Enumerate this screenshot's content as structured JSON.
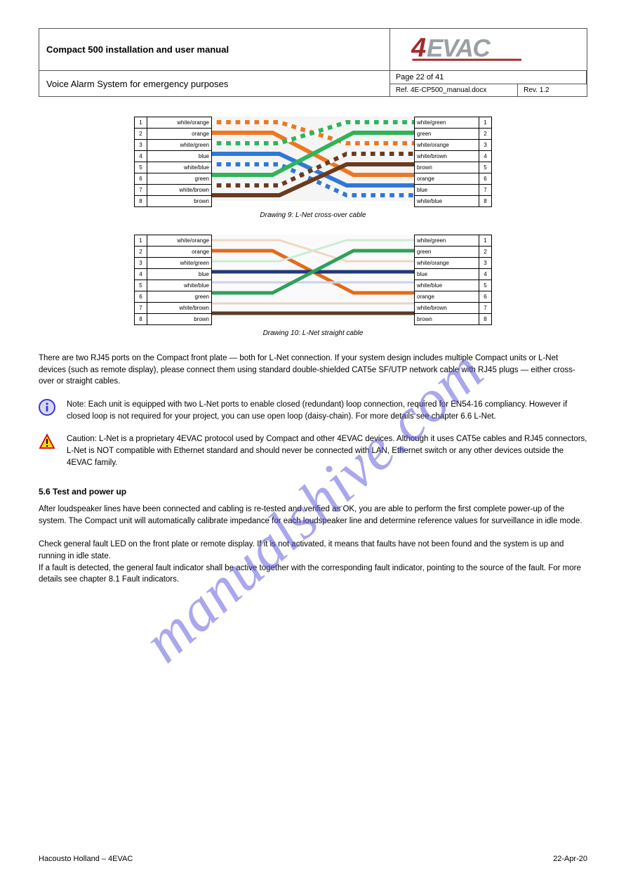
{
  "header": {
    "title": "Compact 500 installation and user manual",
    "subtitle": "Voice Alarm System for emergency purposes",
    "page_label": "Page 22 of 41",
    "ref_label": "Ref.",
    "ref_value": "4E-CP500_manual.docx",
    "rev_label": "Rev.",
    "rev_value": "1.2"
  },
  "logo": {
    "text": "4EVAC",
    "four_color": "#a32b2b",
    "evac_color": "#9aa0a4"
  },
  "diagram1": {
    "caption": "Drawing 9: L-Net cross-over cable",
    "left": [
      {
        "num": "1",
        "label": "white/orange"
      },
      {
        "num": "2",
        "label": "orange"
      },
      {
        "num": "3",
        "label": "white/green"
      },
      {
        "num": "4",
        "label": "blue"
      },
      {
        "num": "5",
        "label": "white/blue"
      },
      {
        "num": "6",
        "label": "green"
      },
      {
        "num": "7",
        "label": "white/brown"
      },
      {
        "num": "8",
        "label": "brown"
      }
    ],
    "right": [
      {
        "label": "white/green",
        "num": "1"
      },
      {
        "label": "green",
        "num": "2"
      },
      {
        "label": "white/orange",
        "num": "3"
      },
      {
        "label": "white/brown",
        "num": "4"
      },
      {
        "label": "brown",
        "num": "5"
      },
      {
        "label": "orange",
        "num": "6"
      },
      {
        "label": "blue",
        "num": "7"
      },
      {
        "label": "white/blue",
        "num": "8"
      }
    ],
    "wires": {
      "bg": "#ffffff",
      "stroke_width": 6,
      "dash_width": 6,
      "colors": {
        "orange": "#ee7722",
        "green": "#2fb45a",
        "blue": "#2f78d8",
        "brown": "#6b3b1f",
        "white": "#ffffff"
      }
    }
  },
  "diagram2": {
    "caption": "Drawing 10: L-Net straight cable",
    "left": [
      {
        "num": "1",
        "label": "white/orange"
      },
      {
        "num": "2",
        "label": "orange"
      },
      {
        "num": "3",
        "label": "white/green"
      },
      {
        "num": "4",
        "label": "blue"
      },
      {
        "num": "5",
        "label": "white/blue"
      },
      {
        "num": "6",
        "label": "green"
      },
      {
        "num": "7",
        "label": "white/brown"
      },
      {
        "num": "8",
        "label": "brown"
      }
    ],
    "right": [
      {
        "label": "white/green",
        "num": "1"
      },
      {
        "label": "green",
        "num": "2"
      },
      {
        "label": "white/orange",
        "num": "3"
      },
      {
        "label": "blue",
        "num": "4"
      },
      {
        "label": "white/blue",
        "num": "5"
      },
      {
        "label": "orange",
        "num": "6"
      },
      {
        "label": "white/brown",
        "num": "7"
      },
      {
        "label": "brown",
        "num": "8"
      }
    ],
    "wires": {
      "stroke_width": 5,
      "colors": {
        "orange": "#e36a1a",
        "green": "#2ea05a",
        "blue": "#223a7a",
        "brown": "#5a3a24",
        "light": "#f0d6c2"
      }
    }
  },
  "text": {
    "para_after": "There are two RJ45 ports on the Compact front plate — both for L-Net connection. If your system design includes multiple Compact units or L-Net devices (such as remote display), please connect them using standard double-shielded CAT5e SF/UTP network cable with RJ45 plugs — either cross-over or straight cables.",
    "note_info": "Note: Each unit is equipped with two L-Net ports to enable closed (redundant) loop connection, required for EN54-16 compliancy. However if closed loop is not required for your project, you can use open loop (daisy-chain). For more details see chapter 6.6 L-Net.",
    "note_warn": "Caution: L-Net is a proprietary 4EVAC protocol used by Compact and other 4EVAC devices. Although it uses CAT5e cables and RJ45 connectors, L-Net is NOT compatible with Ethernet standard and should never be connected with LAN, Ethernet switch or any other devices outside the 4EVAC family.",
    "section_head": "5.6    Test and power up",
    "section_body": "After loudspeaker lines have been connected and cabling is re-tested and verified as OK, you are able to perform the first complete power-up of the system. The Compact unit will automatically calibrate impedance for each loudspeaker line and determine reference values for surveillance in idle mode.\n\nCheck general fault LED on the front plate or remote display. If it is not activated, it means that faults have not been found and the system is up and running in idle state.\nIf a fault is detected, the general fault indicator shall be active together with the corresponding fault indicator, pointing to the source of the fault. For more details see chapter 8.1 Fault indicators."
  },
  "footer": {
    "company": "Hacousto Holland – 4EVAC",
    "date": "22-Apr-20"
  },
  "watermark": "manualshive.com"
}
